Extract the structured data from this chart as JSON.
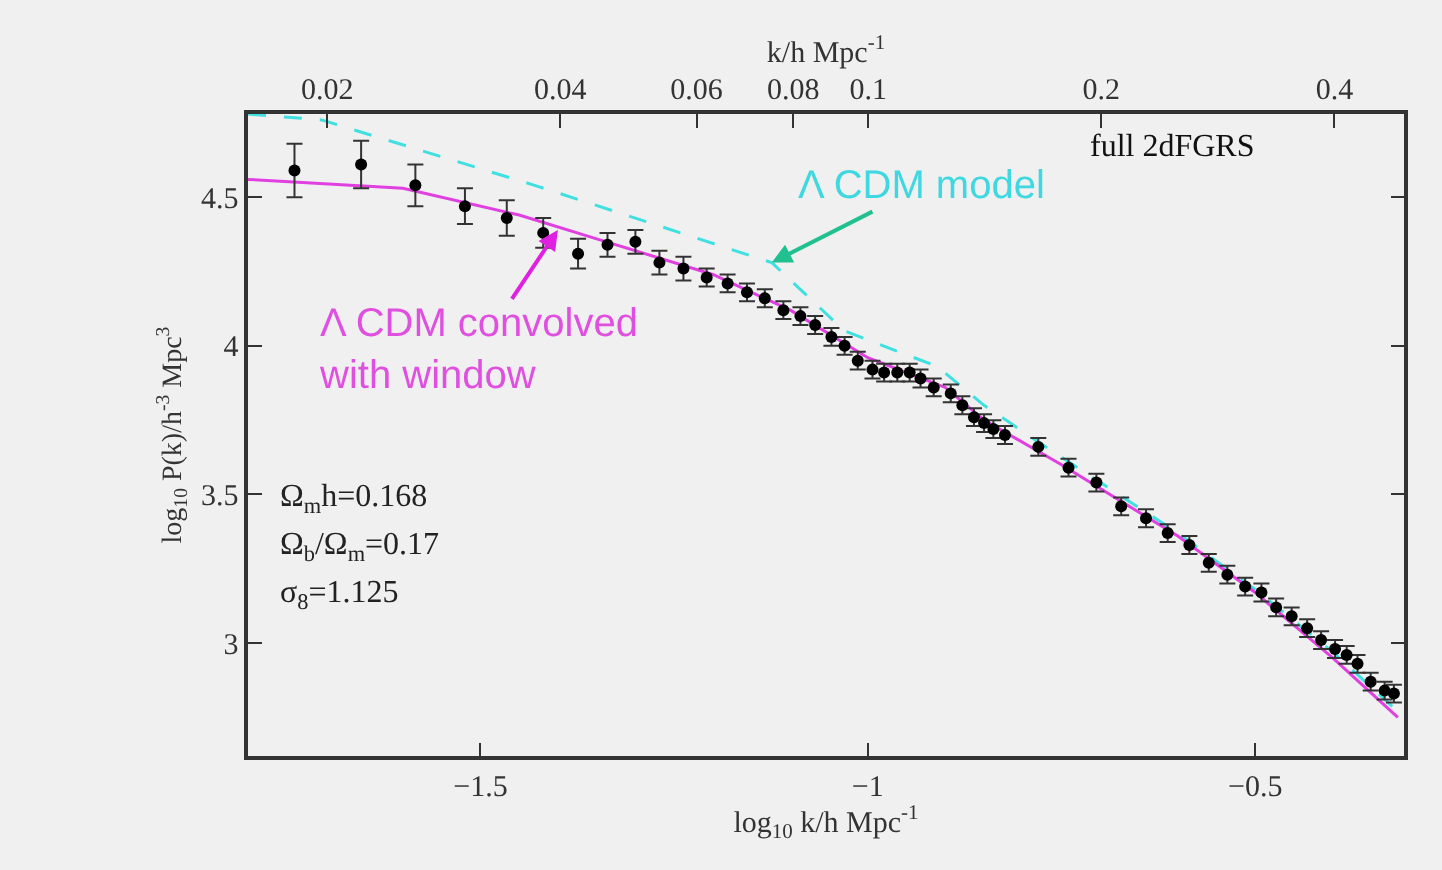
{
  "chart_data": {
    "type": "scatter",
    "xlabel": "log$_{10}$ k/h Mpc$^{-1}$",
    "ylabel": "log$_{10}$ P(k)/h$^{-3}$ Mpc$^{3}$",
    "x2label": "k/h Mpc$^{-1}$",
    "xlim": [
      -1.8,
      -0.308
    ],
    "xticks": [
      {
        "value": -1.5,
        "label": "−1.5"
      },
      {
        "value": -1,
        "label": "−1"
      },
      {
        "value": -0.5,
        "label": "−0.5"
      }
    ],
    "x2lim": [
      0.0158,
      0.492
    ],
    "x2ticks": [
      0.02,
      0.04,
      0.06,
      0.08,
      0.1,
      0.2,
      0.4
    ],
    "log": "x2",
    "ylim": [
      2.62,
      4.78
    ],
    "yticks": [
      3,
      3.5,
      4,
      4.5
    ],
    "grid": false,
    "series": [
      {
        "type": "line",
        "color": "#40e0e0",
        "line_style": "dashed",
        "marker": "none",
        "x": [
          -1.8,
          -1.705,
          -1.43,
          -1.218,
          -1.124,
          -1.03,
          -0.91,
          -0.85,
          -0.782,
          -0.6,
          -0.5,
          -0.4,
          -0.316
        ],
        "values": [
          4.78,
          4.76,
          4.54,
          4.36,
          4.28,
          4.05,
          3.93,
          3.8,
          3.68,
          3.37,
          3.18,
          2.97,
          2.77
        ]
      },
      {
        "type": "line",
        "color": "#e040e0",
        "line_style": "solid",
        "marker": "none",
        "x": [
          -1.8,
          -1.6,
          -1.45,
          -1.35,
          -1.2,
          -1.1,
          -1.0,
          -0.95,
          -0.9,
          -0.85,
          -0.75,
          -0.6,
          -0.5,
          -0.4,
          -0.316
        ],
        "values": [
          4.56,
          4.53,
          4.44,
          4.36,
          4.24,
          4.12,
          3.96,
          3.91,
          3.86,
          3.75,
          3.6,
          3.36,
          3.17,
          2.95,
          2.75
        ]
      },
      {
        "color": "#000000",
        "marker": "circle",
        "x": [
          -1.74,
          -1.654,
          -1.584,
          -1.52,
          -1.466,
          -1.419,
          -1.374,
          -1.336,
          -1.3,
          -1.269,
          -1.238,
          -1.208,
          -1.181,
          -1.156,
          -1.133,
          -1.109,
          -1.087,
          -1.068,
          -1.047,
          -1.03,
          -1.013,
          -0.994,
          -0.979,
          -0.962,
          -0.946,
          -0.932,
          -0.915,
          -0.893,
          -0.878,
          -0.863,
          -0.85,
          -0.838,
          -0.823,
          -0.78,
          -0.741,
          -0.705,
          -0.673,
          -0.641,
          -0.613,
          -0.585,
          -0.56,
          -0.536,
          -0.513,
          -0.492,
          -0.473,
          -0.453,
          -0.433,
          -0.415,
          -0.397,
          -0.382,
          -0.368,
          -0.351,
          -0.333,
          -0.321
        ],
        "values": [
          4.59,
          4.61,
          4.54,
          4.47,
          4.43,
          4.38,
          4.31,
          4.34,
          4.35,
          4.28,
          4.26,
          4.23,
          4.21,
          4.18,
          4.16,
          4.12,
          4.1,
          4.07,
          4.03,
          4.0,
          3.95,
          3.92,
          3.91,
          3.91,
          3.91,
          3.89,
          3.86,
          3.84,
          3.8,
          3.76,
          3.74,
          3.72,
          3.7,
          3.66,
          3.59,
          3.54,
          3.46,
          3.42,
          3.37,
          3.33,
          3.27,
          3.23,
          3.19,
          3.17,
          3.12,
          3.09,
          3.05,
          3.01,
          2.98,
          2.96,
          2.93,
          2.87,
          2.84,
          2.83
        ],
        "errors": [
          0.09,
          0.08,
          0.07,
          0.06,
          0.06,
          0.05,
          0.05,
          0.04,
          0.04,
          0.04,
          0.04,
          0.03,
          0.03,
          0.03,
          0.03,
          0.03,
          0.03,
          0.03,
          0.03,
          0.03,
          0.03,
          0.03,
          0.03,
          0.03,
          0.03,
          0.03,
          0.03,
          0.03,
          0.03,
          0.03,
          0.03,
          0.03,
          0.03,
          0.03,
          0.03,
          0.03,
          0.03,
          0.03,
          0.03,
          0.03,
          0.03,
          0.03,
          0.03,
          0.03,
          0.03,
          0.03,
          0.03,
          0.03,
          0.03,
          0.03,
          0.03,
          0.03,
          0.03,
          0.03
        ]
      }
    ],
    "annotations": [
      {
        "text": "full 2dFGRS"
      },
      {
        "text": "Λ CDM model",
        "x": -1.124,
        "y": 4.28
      },
      {
        "text": "Λ CDM convolved\nwith window",
        "x": -1.4,
        "y": 4.39
      },
      {
        "text": "Ω$_{m}$h=0.168"
      },
      {
        "text": "Ω$_{b}$/Ω$_{m}$=0.17"
      },
      {
        "text": "σ$_{8}$=1.125"
      }
    ]
  }
}
